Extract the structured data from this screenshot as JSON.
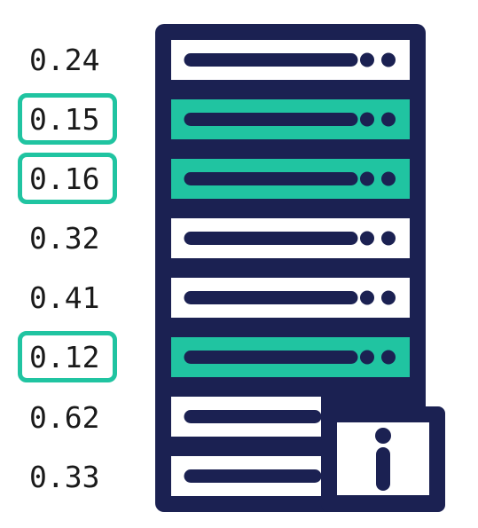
{
  "colors": {
    "navy": "#1b2152",
    "teal": "#20c4a1",
    "white": "#ffffff"
  },
  "values": [
    {
      "label": "0.24",
      "highlighted": false
    },
    {
      "label": "0.15",
      "highlighted": true
    },
    {
      "label": "0.16",
      "highlighted": true
    },
    {
      "label": "0.32",
      "highlighted": false
    },
    {
      "label": "0.41",
      "highlighted": false
    },
    {
      "label": "0.12",
      "highlighted": true
    },
    {
      "label": "0.62",
      "highlighted": false
    },
    {
      "label": "0.33",
      "highlighted": false
    }
  ],
  "icons": {
    "server_rack": "server-rack-icon",
    "info": "info-icon"
  }
}
